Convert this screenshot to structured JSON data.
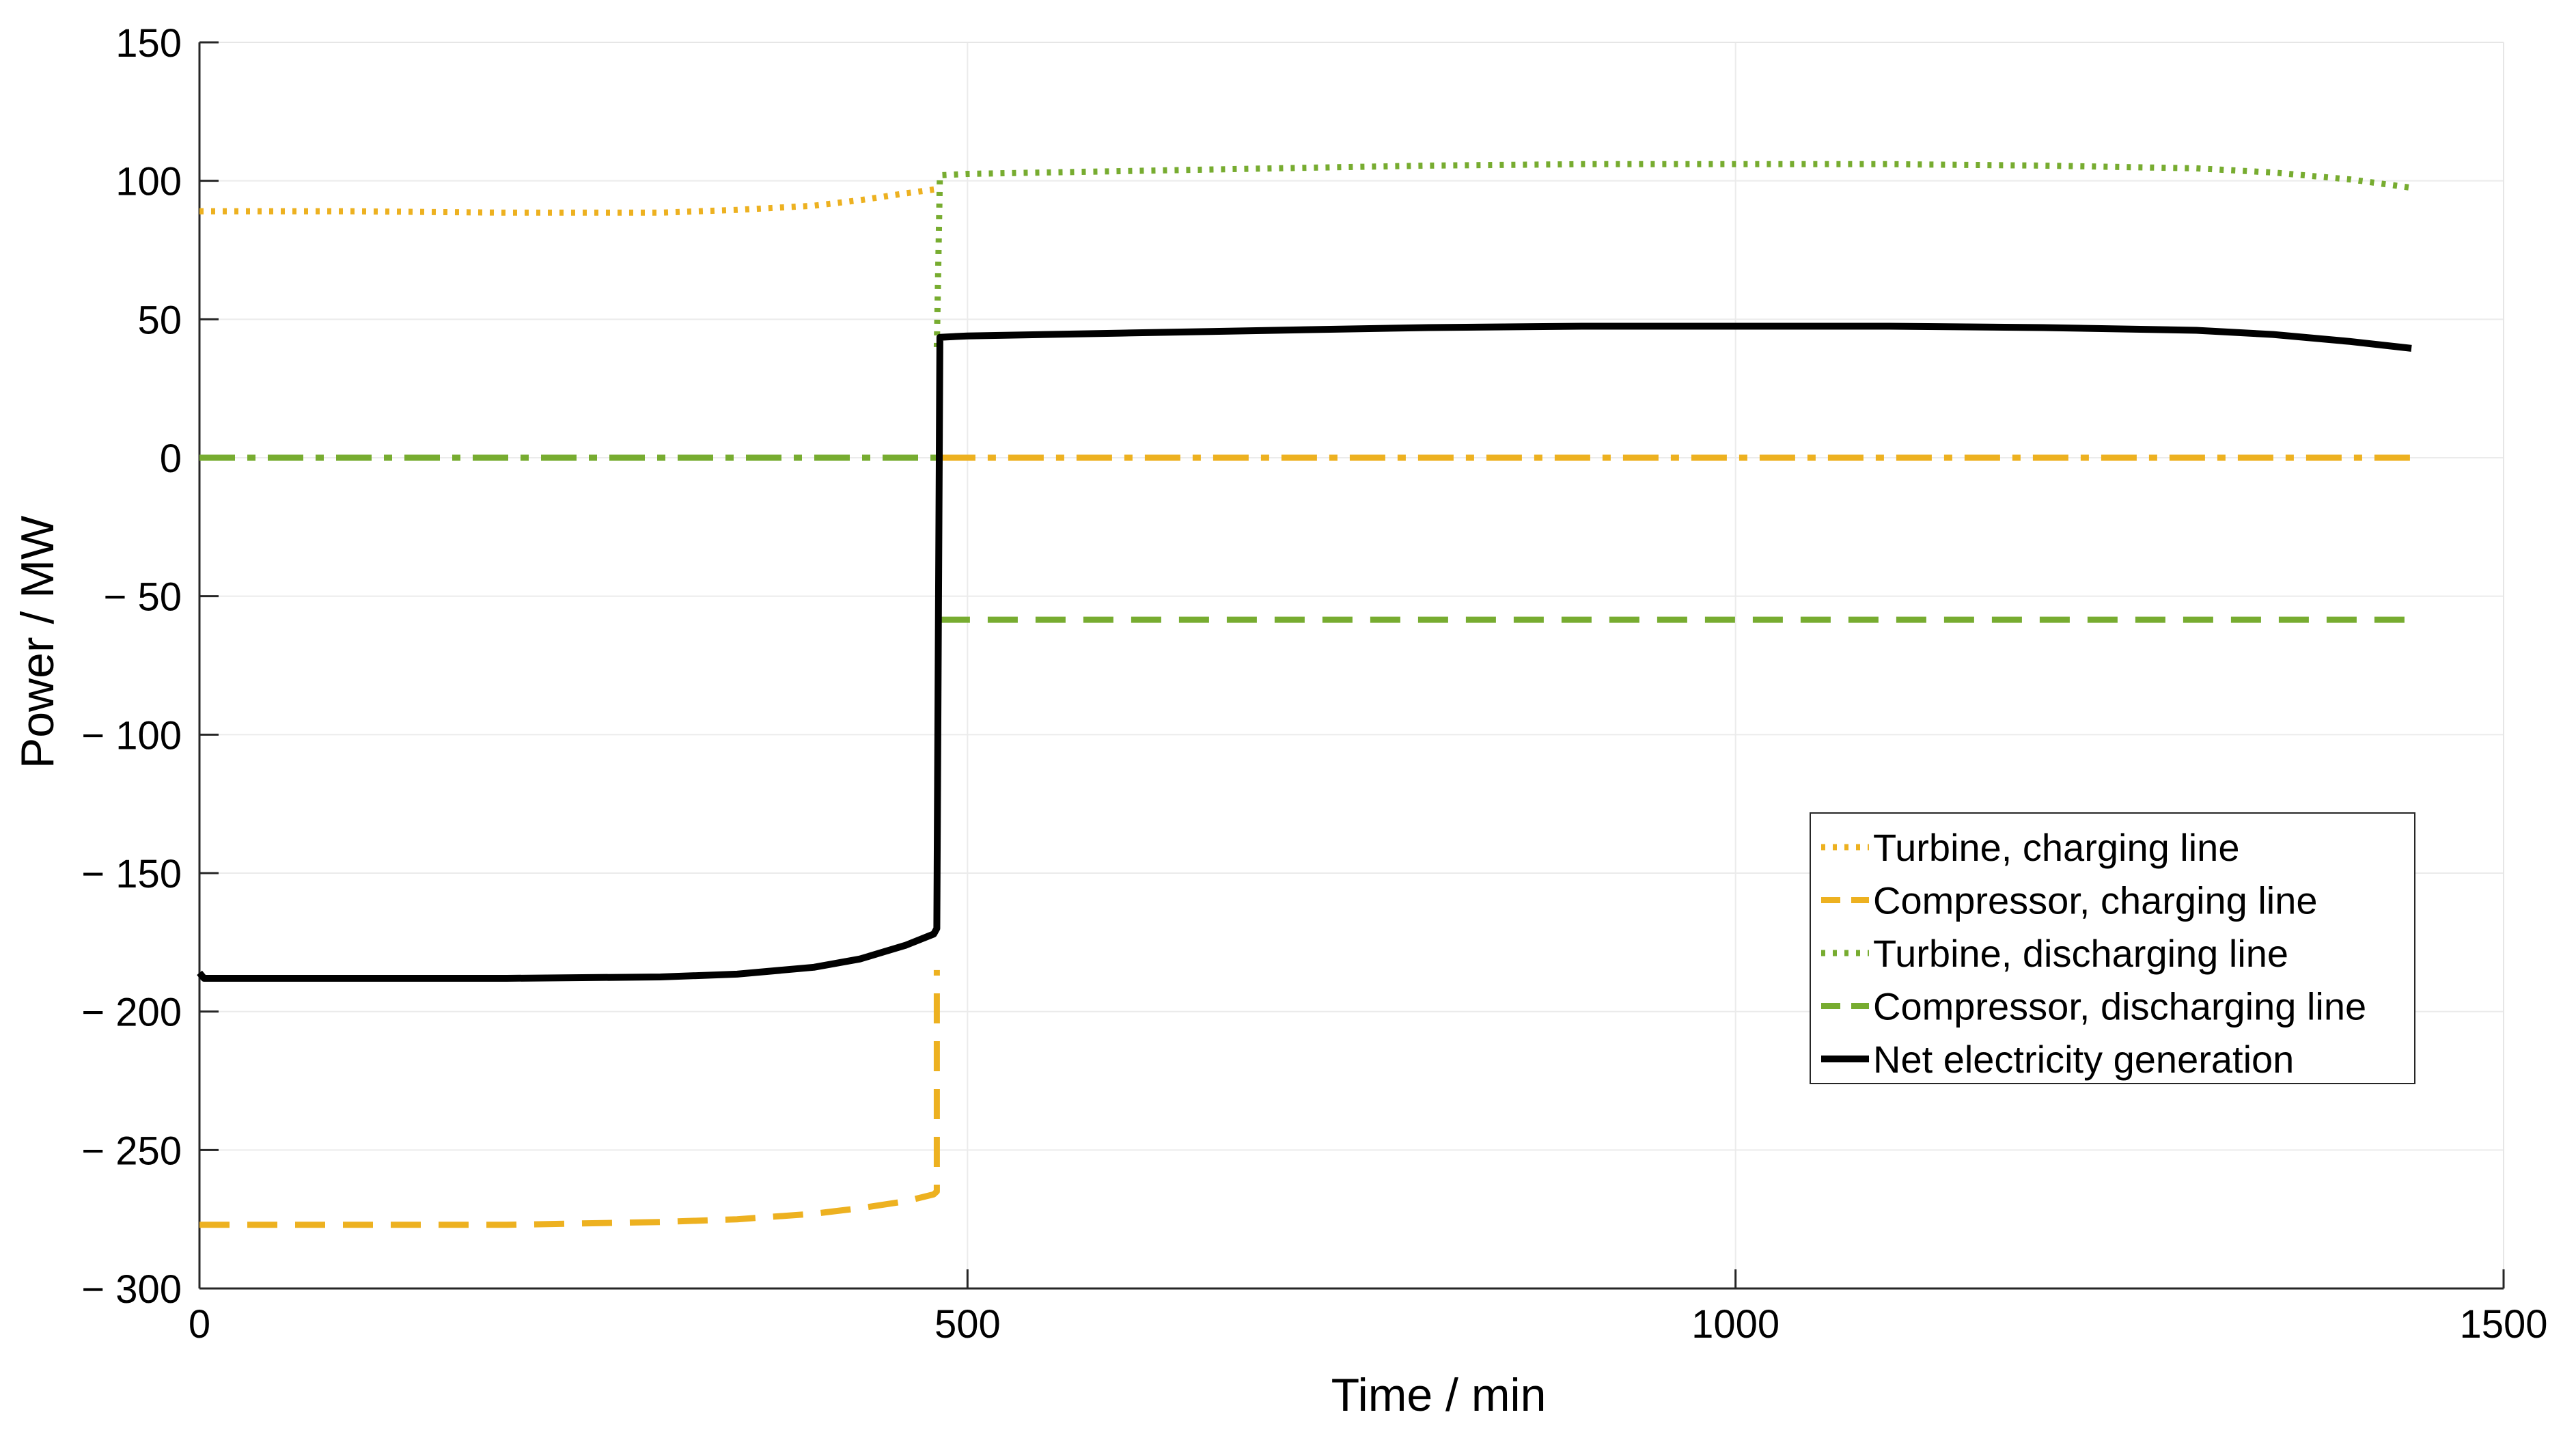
{
  "chart_data": {
    "type": "line",
    "xlabel": "Time / min",
    "ylabel": "Power / MW",
    "xlim": [
      0,
      1500
    ],
    "ylim": [
      -300,
      150
    ],
    "xticks": [
      0,
      500,
      1000,
      1500
    ],
    "xtick_labels": [
      "0",
      "500",
      "1000",
      "1500"
    ],
    "yticks": [
      150,
      100,
      50,
      0,
      -50,
      -100,
      -150,
      -200,
      -250,
      -300
    ],
    "ytick_labels": [
      "150",
      "100",
      "50",
      "0",
      "− 50",
      "− 100",
      "− 150",
      "− 200",
      "− 250",
      "− 300"
    ],
    "grid": true,
    "legend_position": "lower-right",
    "series": [
      {
        "name": "Turbine, charging line",
        "color": "#EDB120",
        "style": "dotted",
        "x": [
          0,
          100,
          200,
          300,
          350,
          400,
          430,
          460,
          480
        ],
        "y": [
          89,
          89,
          88.5,
          88.5,
          89.5,
          91,
          93,
          95.5,
          97
        ]
      },
      {
        "name": "Compressor, charging line",
        "color": "#EDB120",
        "style": "dashed",
        "x": [
          0,
          100,
          200,
          300,
          350,
          400,
          430,
          460,
          478,
          480,
          480
        ],
        "y": [
          -277,
          -277,
          -277,
          -276,
          -275,
          -273,
          -271,
          -268.5,
          -266,
          -265,
          -185
        ]
      },
      {
        "name": "Turbine, discharging line",
        "color": "#77AC30",
        "style": "dotted",
        "x": [
          480,
          482,
          500,
          600,
          700,
          800,
          900,
          1000,
          1100,
          1200,
          1300,
          1350,
          1400,
          1440
        ],
        "y": [
          40,
          102,
          102.5,
          103.5,
          104.5,
          105.5,
          106,
          106,
          106,
          105.5,
          104.5,
          103,
          100.5,
          97.5
        ]
      },
      {
        "name": "Compressor, discharging line",
        "color": "#77AC30",
        "style": "dashed",
        "x": [
          482,
          1440
        ],
        "y": [
          -58.5,
          -58.5
        ]
      },
      {
        "name": "Net electricity generation",
        "color": "#000000",
        "style": "solid",
        "x": [
          0,
          3,
          100,
          200,
          300,
          350,
          400,
          430,
          460,
          478,
          480,
          482,
          500,
          600,
          700,
          800,
          900,
          1000,
          1100,
          1200,
          1300,
          1350,
          1400,
          1440
        ],
        "y": [
          -186,
          -188,
          -188,
          -188,
          -187.5,
          -186.5,
          -184,
          -181,
          -176,
          -172,
          -170,
          43.5,
          44,
          45,
          46,
          47,
          47.5,
          47.5,
          47.5,
          47,
          46,
          44.5,
          42,
          39.5
        ]
      }
    ],
    "unlabeled_series": [
      {
        "color": "#77AC30",
        "style": "dashdot",
        "x": [
          0,
          480
        ],
        "y": [
          0,
          0
        ]
      },
      {
        "color": "#EDB120",
        "style": "dashdot",
        "x": [
          482,
          1440
        ],
        "y": [
          0,
          0
        ]
      }
    ]
  }
}
